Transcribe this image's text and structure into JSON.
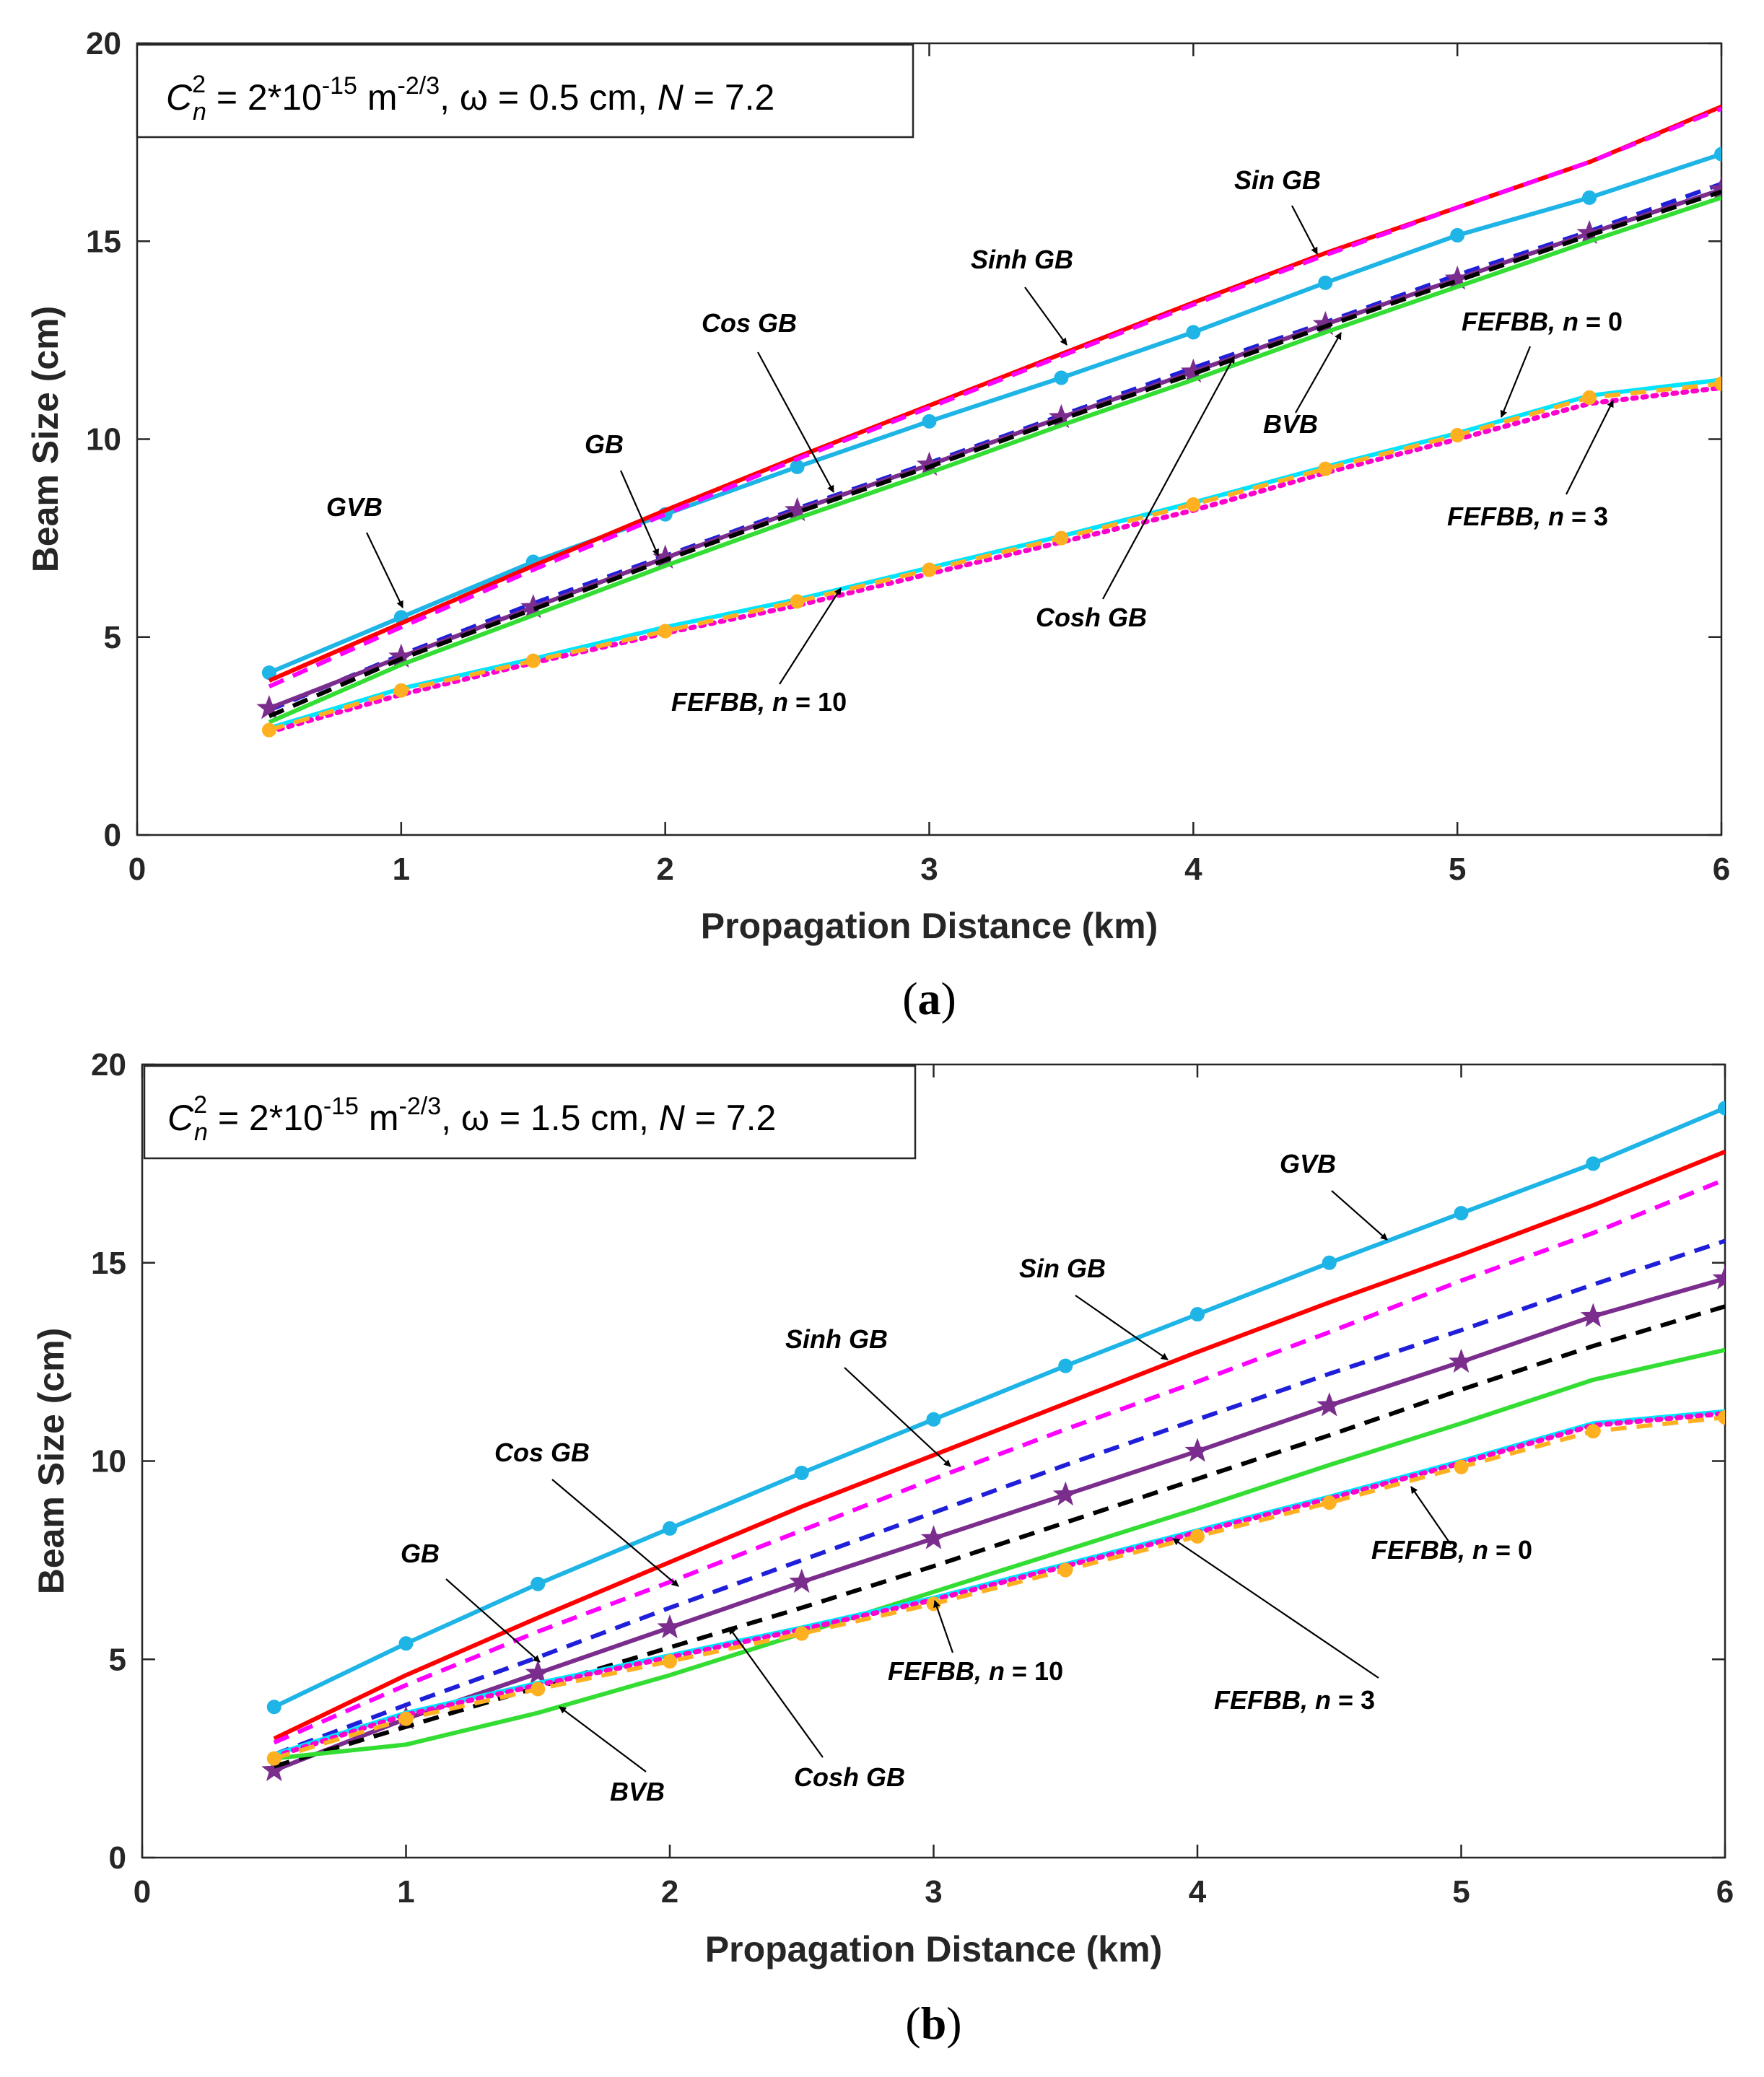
{
  "chart_data": [
    {
      "type": "line",
      "panel": "a",
      "caption_label": "a",
      "info": {
        "text": "C_n^2 = 2*10^-15 m^-2/3, ω = 0.5 cm, N = 7.2",
        "cn": "C",
        "n_sub": "n",
        "sq": "2",
        "eq1": " = 2*10",
        "exp1": "-15",
        "unit": " m",
        "exp2": "-2/3",
        "omega": ", ω = 0.5 cm, ",
        "nvar": "N",
        "nval": " = 7.2"
      },
      "xlabel": "Propagation Distance (km)",
      "ylabel": "Beam Size (cm)",
      "xlim": [
        0,
        6
      ],
      "ylim": [
        0,
        20
      ],
      "xticks": [
        "0",
        "1",
        "2",
        "3",
        "4",
        "5",
        "6"
      ],
      "yticks": [
        "0",
        "5",
        "10",
        "15",
        "20"
      ],
      "x": [
        0.5,
        1,
        1.5,
        2,
        2.5,
        3,
        3.5,
        4,
        4.5,
        5,
        5.5,
        6
      ],
      "series": [
        {
          "name": "GVB",
          "color": "#1EB4E6",
          "style": "solid",
          "marker": "circle",
          "values": [
            4.1,
            5.5,
            6.9,
            8.1,
            9.3,
            10.45,
            11.55,
            12.7,
            13.95,
            15.15,
            16.1,
            17.2
          ]
        },
        {
          "name": "Sin GB",
          "color": "#FF0000",
          "style": "solid",
          "marker": "none",
          "values": [
            3.9,
            5.35,
            6.8,
            8.2,
            9.55,
            10.85,
            12.15,
            13.45,
            14.7,
            15.85,
            17.0,
            18.4
          ]
        },
        {
          "name": "Sinh GB",
          "color": "#FF00FF",
          "style": "dashed",
          "marker": "none",
          "values": [
            3.75,
            5.25,
            6.7,
            8.1,
            9.5,
            10.8,
            12.1,
            13.4,
            14.65,
            15.85,
            17.0,
            18.35
          ]
        },
        {
          "name": "Cos GB",
          "color": "#1F1FD9",
          "style": "dashed",
          "marker": "none",
          "values": [
            3.15,
            4.55,
            5.85,
            7.05,
            8.25,
            9.4,
            10.6,
            11.8,
            12.95,
            14.15,
            15.25,
            16.45
          ]
        },
        {
          "name": "GB",
          "color": "#7B2D8E",
          "style": "solid",
          "marker": "star",
          "values": [
            3.2,
            4.5,
            5.75,
            7.0,
            8.2,
            9.35,
            10.55,
            11.7,
            12.9,
            14.05,
            15.2,
            16.3
          ]
        },
        {
          "name": "Cosh GB",
          "color": "#000000",
          "style": "dashed",
          "marker": "none",
          "values": [
            3.0,
            4.45,
            5.7,
            6.95,
            8.15,
            9.3,
            10.5,
            11.65,
            12.85,
            14.0,
            15.15,
            16.25
          ]
        },
        {
          "name": "BVB",
          "color": "#33DD33",
          "style": "solid",
          "marker": "none",
          "values": [
            2.85,
            4.3,
            5.55,
            6.8,
            8.0,
            9.15,
            10.35,
            11.5,
            12.7,
            13.85,
            15.0,
            16.1
          ]
        },
        {
          "name": "FEFBB, n = 0",
          "color": "#00E5FF",
          "style": "solid",
          "marker": "none",
          "values": [
            2.7,
            3.7,
            4.45,
            5.25,
            5.95,
            6.75,
            7.55,
            8.4,
            9.3,
            10.15,
            11.1,
            11.5
          ]
        },
        {
          "name": "FEFBB, n = 3",
          "color": "#FF00CC",
          "style": "dotted",
          "marker": "none",
          "values": [
            2.6,
            3.55,
            4.35,
            5.1,
            5.8,
            6.6,
            7.4,
            8.2,
            9.15,
            10.0,
            10.9,
            11.3
          ]
        },
        {
          "name": "FEFBB, n = 10",
          "color": "#FFB020",
          "style": "dashed",
          "marker": "circle",
          "values": [
            2.65,
            3.65,
            4.4,
            5.15,
            5.9,
            6.7,
            7.5,
            8.35,
            9.25,
            10.1,
            11.05,
            11.4
          ]
        }
      ],
      "annotations": [
        {
          "label": "Sin GB"
        },
        {
          "label": "Sinh GB"
        },
        {
          "label": "Cos GB"
        },
        {
          "label": "GB"
        },
        {
          "label": "GVB"
        },
        {
          "label": "BVB"
        },
        {
          "label": "FEFBB,",
          "n": "n",
          "val": " = 0"
        },
        {
          "label": "FEFBB,",
          "n": "n",
          "val": " = 3"
        },
        {
          "label": "Cosh GB"
        },
        {
          "label": "FEFBB,",
          "n": "n",
          "val": " = 10"
        }
      ]
    },
    {
      "type": "line",
      "panel": "b",
      "caption_label": "b",
      "info": {
        "text": "C_n^2 = 2*10^-15 m^-2/3, ω = 1.5 cm, N = 7.2",
        "cn": "C",
        "n_sub": "n",
        "sq": "2",
        "eq1": " = 2*10",
        "exp1": "-15",
        "unit": " m",
        "exp2": "-2/3",
        "omega": ", ω = 1.5 cm, ",
        "nvar": "N",
        "nval": " = 7.2"
      },
      "xlabel": "Propagation Distance (km)",
      "ylabel": "Beam Size (cm)",
      "xlim": [
        0,
        6
      ],
      "ylim": [
        0,
        20
      ],
      "xticks": [
        "0",
        "1",
        "2",
        "3",
        "4",
        "5",
        "6"
      ],
      "yticks": [
        "0",
        "5",
        "10",
        "15",
        "20"
      ],
      "x": [
        0.5,
        1,
        1.5,
        2,
        2.5,
        3,
        3.5,
        4,
        4.5,
        5,
        5.5,
        6
      ],
      "series": [
        {
          "name": "GVB",
          "color": "#1EB4E6",
          "style": "solid",
          "marker": "circle",
          "values": [
            3.8,
            5.4,
            6.9,
            8.3,
            9.7,
            11.05,
            12.4,
            13.7,
            15.0,
            16.25,
            17.5,
            18.9
          ]
        },
        {
          "name": "Sin GB",
          "color": "#FF0000",
          "style": "solid",
          "marker": "none",
          "values": [
            3.0,
            4.6,
            6.05,
            7.45,
            8.85,
            10.15,
            11.45,
            12.75,
            14.0,
            15.2,
            16.45,
            17.8
          ]
        },
        {
          "name": "Sinh GB",
          "color": "#FF00FF",
          "style": "dashed",
          "marker": "none",
          "values": [
            2.9,
            4.35,
            5.7,
            6.95,
            8.25,
            9.55,
            10.8,
            12.0,
            13.25,
            14.55,
            15.75,
            17.1
          ]
        },
        {
          "name": "Cos GB",
          "color": "#1F1FD9",
          "style": "dashed",
          "marker": "none",
          "values": [
            2.6,
            3.85,
            5.05,
            6.3,
            7.5,
            8.7,
            9.9,
            11.05,
            12.2,
            13.3,
            14.45,
            15.55
          ]
        },
        {
          "name": "GB",
          "color": "#7B2D8E",
          "style": "solid",
          "marker": "star",
          "values": [
            2.2,
            3.5,
            4.65,
            5.8,
            6.95,
            8.05,
            9.15,
            10.25,
            11.4,
            12.5,
            13.65,
            14.6
          ]
        },
        {
          "name": "Cosh GB",
          "color": "#000000",
          "style": "dashed",
          "marker": "none",
          "values": [
            2.3,
            3.3,
            4.3,
            5.3,
            6.3,
            7.35,
            8.45,
            9.55,
            10.65,
            11.8,
            12.9,
            13.9
          ]
        },
        {
          "name": "BVB",
          "color": "#33DD33",
          "style": "solid",
          "marker": "none",
          "values": [
            2.5,
            2.85,
            3.65,
            4.6,
            5.65,
            6.7,
            7.75,
            8.8,
            9.9,
            10.95,
            12.05,
            12.8
          ]
        },
        {
          "name": "FEFBB, n = 0",
          "color": "#00E5FF",
          "style": "solid",
          "marker": "none",
          "values": [
            2.6,
            3.65,
            4.4,
            5.1,
            5.8,
            6.55,
            7.4,
            8.25,
            9.1,
            10.0,
            10.95,
            11.25
          ]
        },
        {
          "name": "FEFBB, n = 3",
          "color": "#FF00CC",
          "style": "dotted",
          "marker": "none",
          "values": [
            2.55,
            3.6,
            4.35,
            5.05,
            5.75,
            6.5,
            7.35,
            8.2,
            9.05,
            9.95,
            10.9,
            11.2
          ]
        },
        {
          "name": "FEFBB, n = 10",
          "color": "#FFB020",
          "style": "dashed",
          "marker": "circle",
          "values": [
            2.5,
            3.5,
            4.25,
            4.95,
            5.65,
            6.4,
            7.25,
            8.1,
            8.95,
            9.85,
            10.75,
            11.1
          ]
        }
      ],
      "annotations": [
        {
          "label": "GVB"
        },
        {
          "label": "Sin GB"
        },
        {
          "label": "Sinh GB"
        },
        {
          "label": "Cos GB"
        },
        {
          "label": "GB"
        },
        {
          "label": "FEFBB,",
          "n": "n",
          "val": " = 0"
        },
        {
          "label": "FEFBB,",
          "n": "n",
          "val": " = 10"
        },
        {
          "label": "FEFBB,",
          "n": "n",
          "val": " = 3"
        },
        {
          "label": "BVB"
        },
        {
          "label": "Cosh GB"
        }
      ]
    }
  ]
}
